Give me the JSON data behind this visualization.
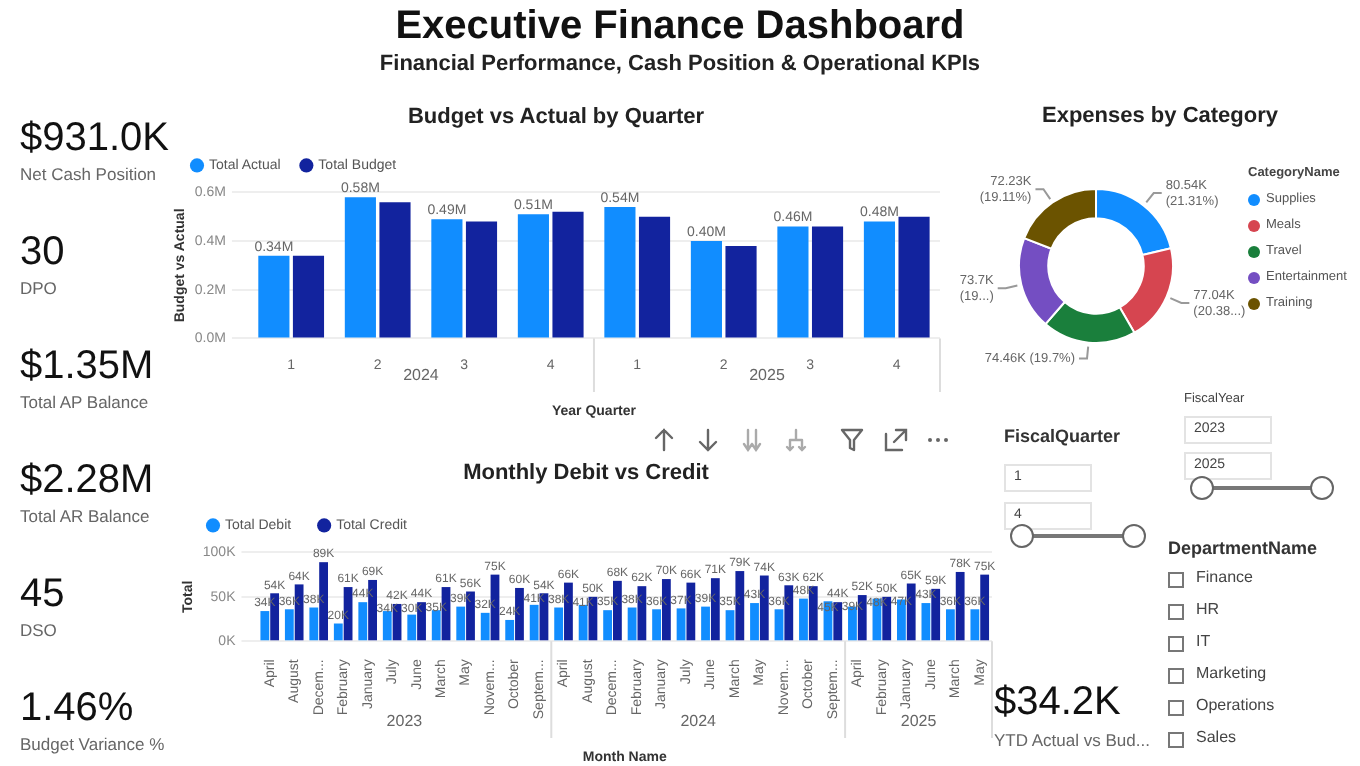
{
  "chart_data": [
    {
      "type": "other",
      "title": "Executive Finance Dashboard",
      "subtitle": "Financial Performance, Cash Position & Operational KPIs",
      "annotations": [
        "$931.0K",
        "Net Cash Position",
        "30",
        "DPO",
        "$1.35M",
        "Total AP Balance",
        "$2.28M",
        "Total AR Balance",
        "45",
        "DSO",
        "1.46%",
        "Budget Variance %"
      ]
    },
    {
      "type": "bar",
      "title": "Budget vs Actual by Quarter",
      "xlabel": "Year Quarter",
      "ylabel": "Budget vs Actual",
      "categories": [
        "1",
        "2",
        "3",
        "4",
        "1",
        "2",
        "3",
        "4"
      ],
      "annotations": [
        "2024",
        "2025"
      ],
      "series": [
        {
          "name": "Total Actual",
          "color": "#118dff",
          "values": [
            0.34,
            0.58,
            0.49,
            0.51,
            0.54,
            0.4,
            0.46,
            0.48
          ],
          "value_labels": [
            "0.34M",
            "0.58M",
            "0.49M",
            "0.51M",
            "0.54M",
            "0.40M",
            "0.46M",
            "0.48M"
          ]
        },
        {
          "name": "Total Budget",
          "color": "#12239e",
          "values": [
            0.34,
            0.56,
            0.48,
            0.52,
            0.5,
            0.38,
            0.46,
            0.5
          ]
        }
      ],
      "ylim": [
        0,
        0.6
      ],
      "yticks": [
        {
          "value": 0,
          "label": "0.0M"
        },
        {
          "value": 0.2,
          "label": "0.2M"
        },
        {
          "value": 0.4,
          "label": "0.4M"
        },
        {
          "value": 0.6,
          "label": "0.6M"
        }
      ],
      "grid": "y",
      "legend": "top left"
    },
    {
      "type": "donut",
      "title": "Expenses by Category",
      "legend_title": "CategoryName",
      "legend": "right",
      "categories": [
        "Supplies",
        "Meals",
        "Travel",
        "Entertainment",
        "Training"
      ],
      "values": [
        21.31,
        20.38,
        19.7,
        19.5,
        19.11
      ],
      "colors": [
        "#118dff",
        "#d64550",
        "#1a7f3c",
        "#744ec2",
        "#6b5300"
      ],
      "value_labels": [
        "80.54K (21.31%)",
        "77.04K (20.38...)",
        "74.46K (19.7%)",
        "73.7K (19...)",
        "72.23K (19.11%)"
      ]
    },
    {
      "type": "bar",
      "title": "Monthly Debit vs Credit",
      "xlabel": "Month Name",
      "ylabel": "Total",
      "categories": [
        "April",
        "August",
        "Decem...",
        "February",
        "January",
        "July",
        "June",
        "March",
        "May",
        "Novem...",
        "October",
        "Septem...",
        "April",
        "August",
        "Decem...",
        "February",
        "January",
        "July",
        "June",
        "March",
        "May",
        "Novem...",
        "October",
        "Septem...",
        "April",
        "February",
        "January",
        "June",
        "March",
        "May"
      ],
      "annotations": [
        "2023",
        "2024",
        "2025"
      ],
      "series": [
        {
          "name": "Total Debit",
          "color": "#118dff",
          "values": [
            34,
            36,
            38,
            20,
            44,
            34,
            30,
            35,
            39,
            32,
            24,
            41,
            38,
            41,
            35,
            38,
            36,
            37,
            39,
            35,
            43,
            36,
            48,
            45,
            39,
            48,
            47,
            43,
            36,
            36
          ],
          "value_labels": [
            "34K",
            "36K",
            "38K",
            "20K",
            "44K",
            "34K",
            "30K",
            "35K",
            "39K",
            "32K",
            "24K",
            "41K",
            "38K",
            "41K",
            "35K",
            "38K",
            "36K",
            "37K",
            "39K",
            "35K",
            "43K",
            "36K",
            "48K",
            "45K",
            "39K",
            "48K",
            "47K",
            "43K",
            "36K",
            "36K"
          ]
        },
        {
          "name": "Total Credit",
          "color": "#12239e",
          "values": [
            54,
            64,
            89,
            61,
            69,
            42,
            44,
            61,
            56,
            75,
            60,
            54,
            66,
            50,
            68,
            62,
            70,
            66,
            71,
            79,
            74,
            63,
            62,
            44,
            52,
            50,
            65,
            59,
            78,
            75
          ],
          "value_labels": [
            "54K",
            "64K",
            "89K",
            "61K",
            "69K",
            "42K",
            "44K",
            "61K",
            "56K",
            "75K",
            "60K",
            "54K",
            "66K",
            "50K",
            "68K",
            "62K",
            "70K",
            "66K",
            "71K",
            "79K",
            "74K",
            "63K",
            "62K",
            "44K",
            "52K",
            "50K",
            "65K",
            "59K",
            "78K",
            "75K"
          ]
        }
      ],
      "ylim": [
        0,
        100
      ],
      "yticks": [
        {
          "value": 0,
          "label": "0K"
        },
        {
          "value": 50,
          "label": "50K"
        },
        {
          "value": 100,
          "label": "100K"
        }
      ],
      "grid": "y",
      "legend": "top left"
    },
    {
      "type": "other",
      "annotations": [
        "FiscalQuarter",
        "1",
        "4",
        "FiscalYear",
        "2023",
        "2025",
        "DepartmentName",
        "Finance",
        "HR",
        "IT",
        "Marketing",
        "Operations",
        "Sales"
      ]
    },
    {
      "type": "other",
      "annotations": [
        "$34.2K",
        "YTD Actual vs Bud..."
      ]
    }
  ]
}
